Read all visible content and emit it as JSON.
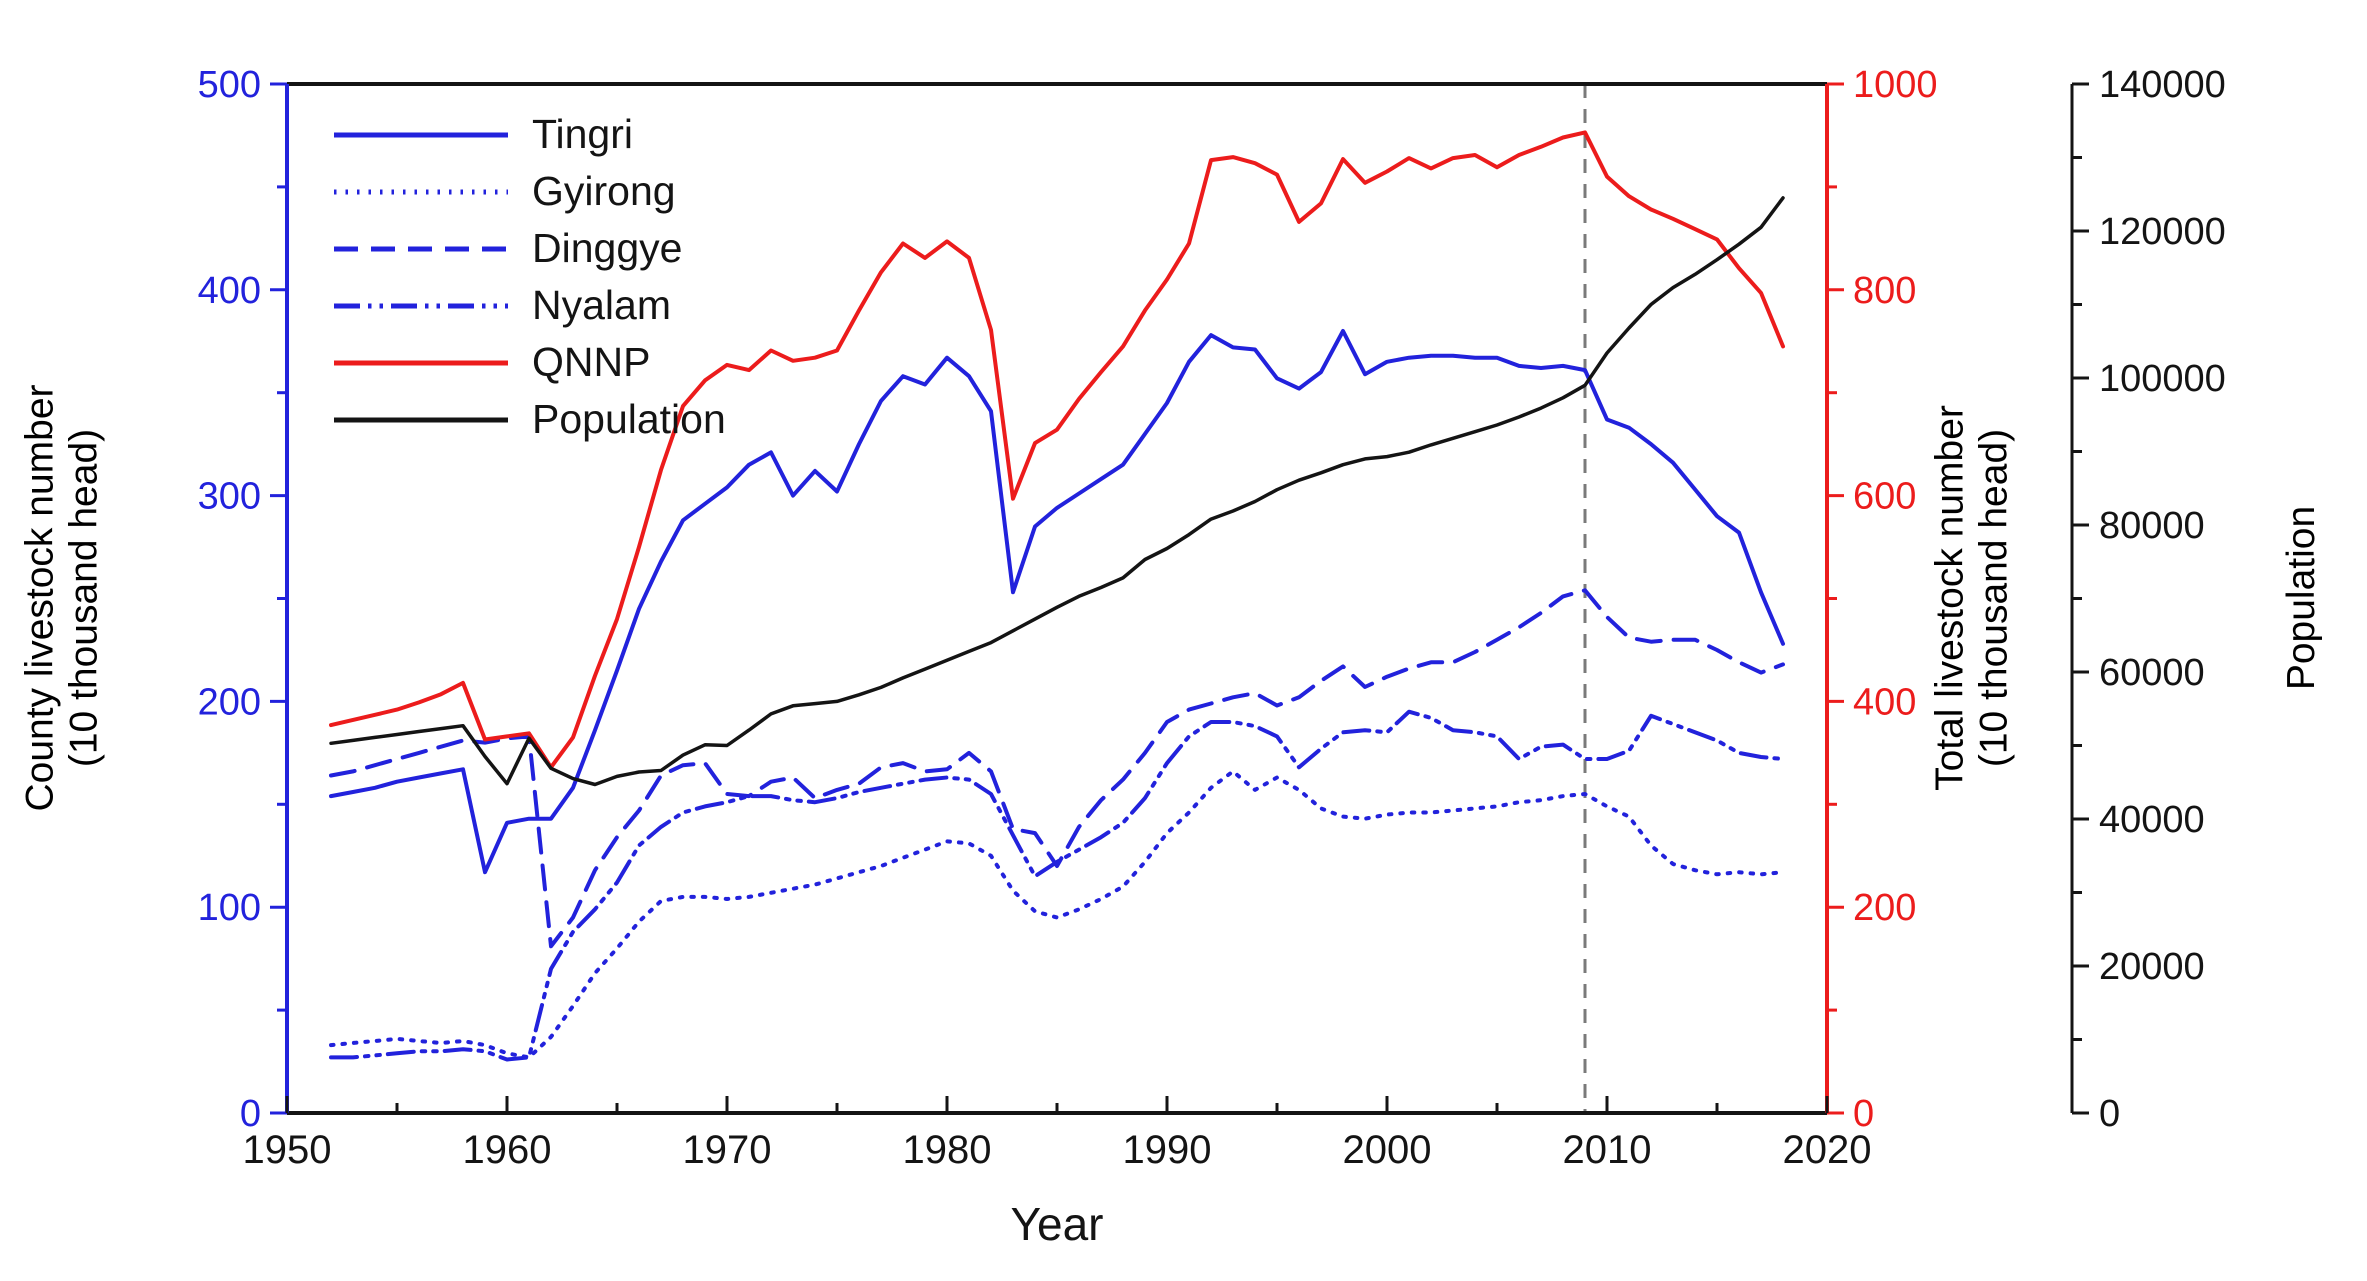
{
  "figure": {
    "background": "#ffffff",
    "accent_blue": "#2222DC",
    "accent_red": "#EC1C1C",
    "accent_black": "#141414",
    "vline_gray": "#7a7a7a"
  },
  "legend": {
    "position": "top-left-inside"
  },
  "axes": {
    "x": {
      "label": "Year",
      "min": 1950,
      "max": 2020,
      "major_ticks": [
        1950,
        1960,
        1970,
        1980,
        1990,
        2000,
        2010,
        2020
      ],
      "minor_step": 5,
      "color": "#141414"
    },
    "y_left": {
      "title_line1": "County livestock number",
      "title_line2": "(10 thousand head)",
      "min": 0,
      "max": 500,
      "major_ticks": [
        0,
        100,
        200,
        300,
        400,
        500
      ],
      "minor_step": 50,
      "color": "#2222DC"
    },
    "y_right": {
      "title_line1": "Total livestock number",
      "title_line2": "(10 thousand head)",
      "min": 0,
      "max": 1000,
      "major_ticks": [
        0,
        200,
        400,
        600,
        800,
        1000
      ],
      "minor_step": 100,
      "color": "#EC1C1C"
    },
    "y_far_right": {
      "title": "Population",
      "min": 0,
      "max": 140000,
      "major_ticks": [
        0,
        20000,
        40000,
        60000,
        80000,
        100000,
        120000,
        140000
      ],
      "minor_step": 10000,
      "color": "#141414"
    }
  },
  "chart_data": {
    "type": "line",
    "title": "",
    "xlabel": "Year",
    "grid": false,
    "x": [
      1952,
      1953,
      1954,
      1955,
      1956,
      1957,
      1958,
      1959,
      1960,
      1961,
      1962,
      1963,
      1964,
      1965,
      1966,
      1967,
      1968,
      1969,
      1970,
      1971,
      1972,
      1973,
      1974,
      1975,
      1976,
      1977,
      1978,
      1979,
      1980,
      1981,
      1982,
      1983,
      1984,
      1985,
      1986,
      1987,
      1988,
      1989,
      1990,
      1991,
      1992,
      1993,
      1994,
      1995,
      1996,
      1997,
      1998,
      1999,
      2000,
      2001,
      2002,
      2003,
      2004,
      2005,
      2006,
      2007,
      2008,
      2009,
      2010,
      2011,
      2012,
      2013,
      2014,
      2015,
      2016,
      2017,
      2018
    ],
    "series": [
      {
        "name": "Tingri",
        "axis": "left",
        "color": "#2222DC",
        "line_style": "solid",
        "width": 4,
        "values": [
          154,
          156,
          158,
          161,
          163,
          165,
          167,
          117,
          141,
          143,
          143,
          158,
          186,
          215,
          245,
          268,
          288,
          296,
          304,
          315,
          321,
          300,
          312,
          302,
          325,
          346,
          358,
          354,
          367,
          358,
          341,
          253,
          285,
          294,
          301,
          308,
          315,
          330,
          345,
          365,
          378,
          372,
          371,
          357,
          352,
          360,
          380,
          359,
          365,
          367,
          368,
          368,
          367,
          367,
          363,
          362,
          363,
          361,
          337,
          333,
          325,
          316,
          303,
          290,
          282,
          253,
          228
        ]
      },
      {
        "name": "Gyirong",
        "axis": "left",
        "color": "#2222DC",
        "line_style": "dotted",
        "width": 4,
        "values": [
          33,
          34,
          35,
          36,
          35,
          34,
          35,
          33,
          29,
          27,
          37,
          52,
          68,
          80,
          93,
          103,
          105,
          105,
          104,
          105,
          107,
          109,
          111,
          114,
          117,
          120,
          124,
          128,
          132,
          131,
          125,
          108,
          98,
          95,
          99,
          104,
          110,
          122,
          136,
          146,
          158,
          166,
          157,
          163,
          157,
          148,
          144,
          143,
          145,
          146,
          146,
          147,
          148,
          149,
          151,
          152,
          154,
          155,
          149,
          144,
          130,
          121,
          118,
          116,
          117,
          116,
          117
        ]
      },
      {
        "name": "Dinggye",
        "axis": "left",
        "color": "#2222DC",
        "line_style": "dashed",
        "width": 4,
        "values": [
          164,
          166,
          169,
          172,
          175,
          178,
          181,
          180,
          182,
          183,
          81,
          95,
          118,
          134,
          147,
          164,
          169,
          170,
          155,
          154,
          161,
          163,
          153,
          157,
          160,
          168,
          170,
          166,
          167,
          175,
          166,
          138,
          136,
          120,
          139,
          152,
          162,
          175,
          190,
          196,
          199,
          202,
          204,
          198,
          202,
          210,
          217,
          207,
          212,
          216,
          219,
          219,
          224,
          230,
          236,
          243,
          251,
          254,
          241,
          231,
          229,
          230,
          230,
          225,
          219,
          214,
          218
        ]
      },
      {
        "name": "Nyalam",
        "axis": "left",
        "color": "#2222DC",
        "line_style": "dash-dot-dot",
        "width": 4,
        "values": [
          27,
          27,
          28,
          29,
          30,
          30,
          31,
          30,
          26,
          27,
          70,
          88,
          99,
          112,
          130,
          139,
          146,
          149,
          151,
          154,
          154,
          152,
          151,
          153,
          156,
          158,
          160,
          162,
          163,
          162,
          155,
          135,
          115,
          122,
          128,
          134,
          141,
          153,
          170,
          183,
          190,
          190,
          188,
          183,
          168,
          177,
          185,
          186,
          185,
          195,
          192,
          186,
          185,
          183,
          172,
          178,
          179,
          172,
          172,
          176,
          193,
          189,
          185,
          181,
          175,
          173,
          172
        ]
      },
      {
        "name": "QNNP",
        "axis": "right",
        "color": "#EC1C1C",
        "line_style": "solid",
        "width": 4,
        "values": [
          377,
          382,
          387,
          392,
          399,
          407,
          418,
          363,
          366,
          369,
          336,
          365,
          425,
          480,
          550,
          625,
          687,
          712,
          727,
          722,
          741,
          731,
          734,
          741,
          780,
          817,
          845,
          831,
          847,
          831,
          761,
          597,
          651,
          664,
          694,
          720,
          745,
          780,
          810,
          845,
          926,
          929,
          923,
          912,
          866,
          884,
          927,
          904,
          915,
          928,
          918,
          928,
          931,
          919,
          931,
          939,
          948,
          953,
          910,
          891,
          878,
          869,
          859,
          849,
          821,
          797,
          745
        ]
      },
      {
        "name": "Population",
        "axis": "far-right",
        "color": "#141414",
        "line_style": "solid",
        "width": 3.5,
        "values": [
          50300,
          50700,
          51100,
          51500,
          51900,
          52300,
          52700,
          48500,
          44800,
          51000,
          46900,
          45500,
          44700,
          45800,
          46400,
          46600,
          48700,
          50100,
          50000,
          52100,
          54300,
          55400,
          55700,
          56000,
          56900,
          57900,
          59200,
          60400,
          61600,
          62800,
          64000,
          65600,
          67200,
          68800,
          70300,
          71500,
          72800,
          75300,
          76800,
          78700,
          80800,
          81900,
          83200,
          84800,
          86100,
          87100,
          88200,
          89000,
          89300,
          89900,
          90900,
          91800,
          92700,
          93600,
          94700,
          95900,
          97300,
          99000,
          103400,
          106800,
          110000,
          112300,
          114100,
          116100,
          118200,
          120500,
          124500
        ]
      }
    ],
    "annotations": {
      "vline_year": 2009,
      "vline_style": "dashed",
      "vline_color": "#7a7a7a"
    },
    "ylim_left": [
      0,
      500
    ],
    "ylim_right": [
      0,
      1000
    ],
    "ylim_far_right": [
      0,
      140000
    ],
    "xlim": [
      1950,
      2020
    ],
    "legend_position": "upper left"
  }
}
